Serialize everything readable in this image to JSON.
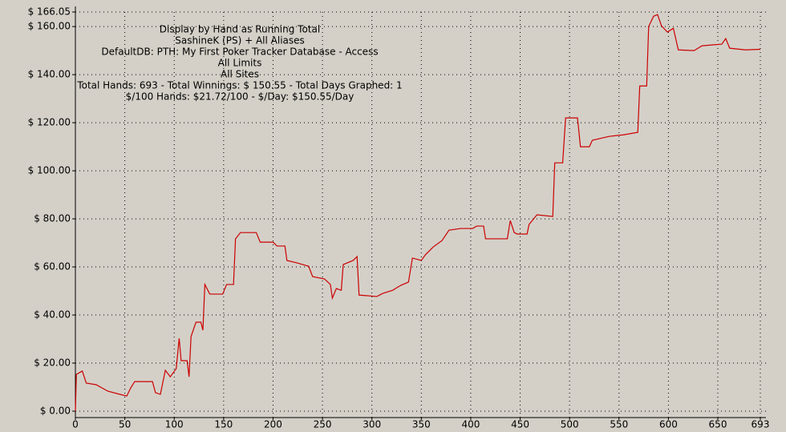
{
  "chart_data": {
    "type": "line",
    "annotations": [
      "Display by Hand as Running Total",
      "SashineK (PS) + All Aliases",
      "DefaultDB: PTH: My First Poker Tracker Database - Access",
      "All Limits",
      "All Sites",
      "Total Hands: 693 - Total Winnings: $ 150.55 - Total Days Graphed: 1",
      "$/100 Hands: $21.72/100 - $/Day: $150.55/Day"
    ],
    "xlim": [
      0,
      693
    ],
    "xticks": [
      0,
      50,
      100,
      150,
      200,
      250,
      300,
      350,
      400,
      450,
      500,
      550,
      600,
      650,
      693
    ],
    "ylim": [
      0,
      166.05
    ],
    "yticks": [
      {
        "value": 0,
        "label": "$ 0.00"
      },
      {
        "value": 20,
        "label": "$ 20.00"
      },
      {
        "value": 40,
        "label": "$ 40.00"
      },
      {
        "value": 60,
        "label": "$ 60.00"
      },
      {
        "value": 80,
        "label": "$ 80.00"
      },
      {
        "value": 100,
        "label": "$ 100.00"
      },
      {
        "value": 120,
        "label": "$ 120.00"
      },
      {
        "value": 140,
        "label": "$ 140.00"
      },
      {
        "value": 160,
        "label": "$ 160.00"
      },
      {
        "value": 166.05,
        "label": "$ 166.05"
      }
    ],
    "grid": true,
    "background": "#d4d0c8",
    "series": [
      {
        "color": "#cc0000",
        "x": [
          0,
          1,
          7,
          11,
          21,
          33,
          45,
          52,
          56,
          60,
          78,
          81,
          86,
          91,
          96,
          102,
          105,
          107,
          113,
          115,
          117,
          122,
          127,
          129,
          131,
          136,
          149,
          153,
          160,
          162,
          167,
          183,
          187,
          200,
          204,
          212,
          214,
          224,
          236,
          240,
          252,
          258,
          260,
          264,
          269,
          271,
          281,
          285,
          287,
          305,
          311,
          321,
          329,
          337,
          341,
          350,
          354,
          362,
          371,
          378,
          390,
          402,
          406,
          413,
          415,
          427,
          437,
          440,
          444,
          447,
          457,
          459,
          467,
          483,
          485,
          493,
          496,
          508,
          511,
          520,
          523,
          540,
          555,
          569,
          571,
          578,
          580,
          585,
          589,
          593,
          599,
          605,
          610,
          626,
          634,
          654,
          658,
          662,
          678,
          693
        ],
        "values": [
          0,
          15.3,
          16.7,
          11.7,
          11,
          8.3,
          7,
          6.3,
          9.7,
          12.3,
          12.3,
          7.7,
          7,
          17,
          14.3,
          17.7,
          30.3,
          21,
          21,
          14.3,
          31,
          37,
          37,
          33.7,
          52.7,
          48.7,
          48.7,
          52.7,
          52.7,
          71.7,
          74.3,
          74.3,
          70.3,
          70.3,
          68.7,
          68.7,
          62.7,
          61.7,
          60.3,
          56,
          55,
          52.7,
          47,
          51,
          50.3,
          61,
          62.7,
          64.3,
          48.3,
          47.7,
          49,
          50.3,
          52.3,
          53.7,
          63.7,
          62.7,
          65,
          68.3,
          71,
          75.3,
          76,
          76,
          77,
          77,
          71.7,
          71.7,
          71.7,
          79.3,
          74.3,
          73.7,
          73.7,
          77.7,
          81.7,
          81,
          103.3,
          103.3,
          122,
          122,
          110,
          110,
          112.7,
          114.3,
          115,
          116,
          135.3,
          135.3,
          160,
          164.3,
          165,
          160.3,
          157.7,
          159.3,
          150.3,
          150,
          152,
          152.7,
          155,
          151,
          150.3,
          150.55
        ]
      }
    ]
  }
}
